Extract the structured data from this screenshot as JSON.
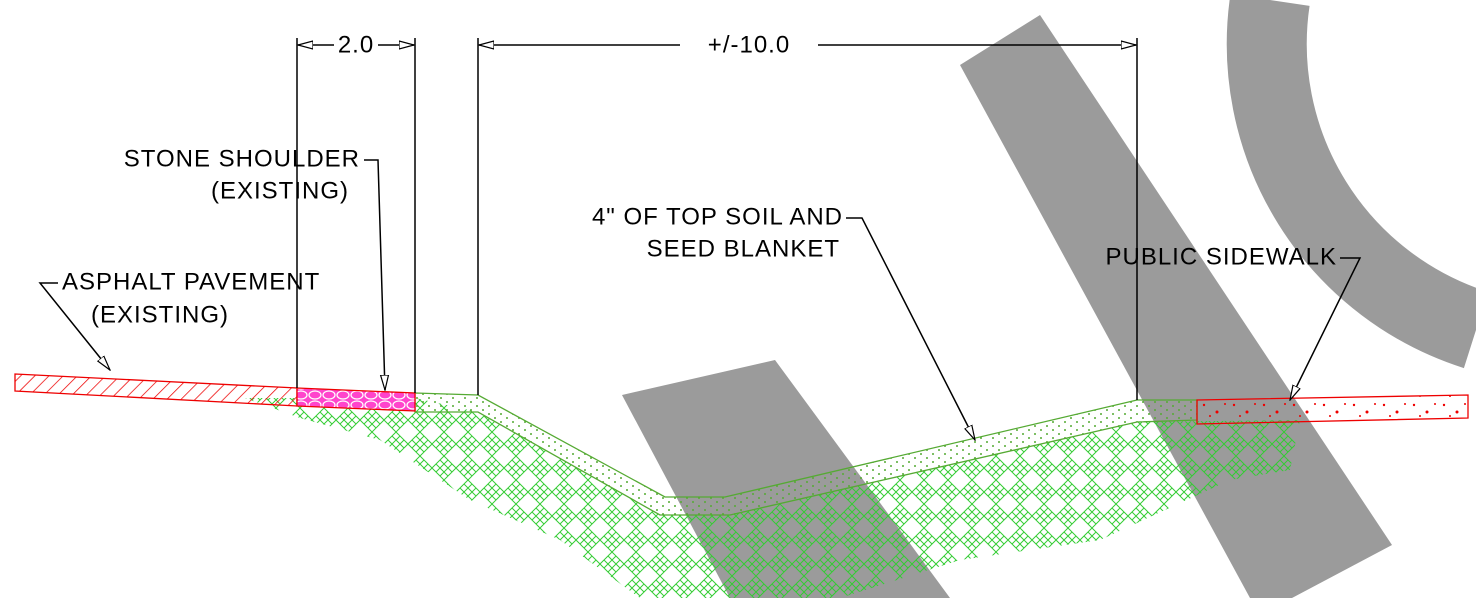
{
  "dimensions": [
    {
      "label": "2.0"
    },
    {
      "label": "+/-10.0"
    }
  ],
  "callouts": [
    {
      "lines": [
        "STONE SHOULDER",
        "(EXISTING)"
      ]
    },
    {
      "lines": [
        "ASPHALT PAVEMENT",
        "(EXISTING)"
      ]
    },
    {
      "lines": [
        "4\" OF TOP SOIL AND",
        "SEED BLANKET"
      ]
    },
    {
      "lines": [
        "PUBLIC SIDEWALK"
      ]
    }
  ]
}
